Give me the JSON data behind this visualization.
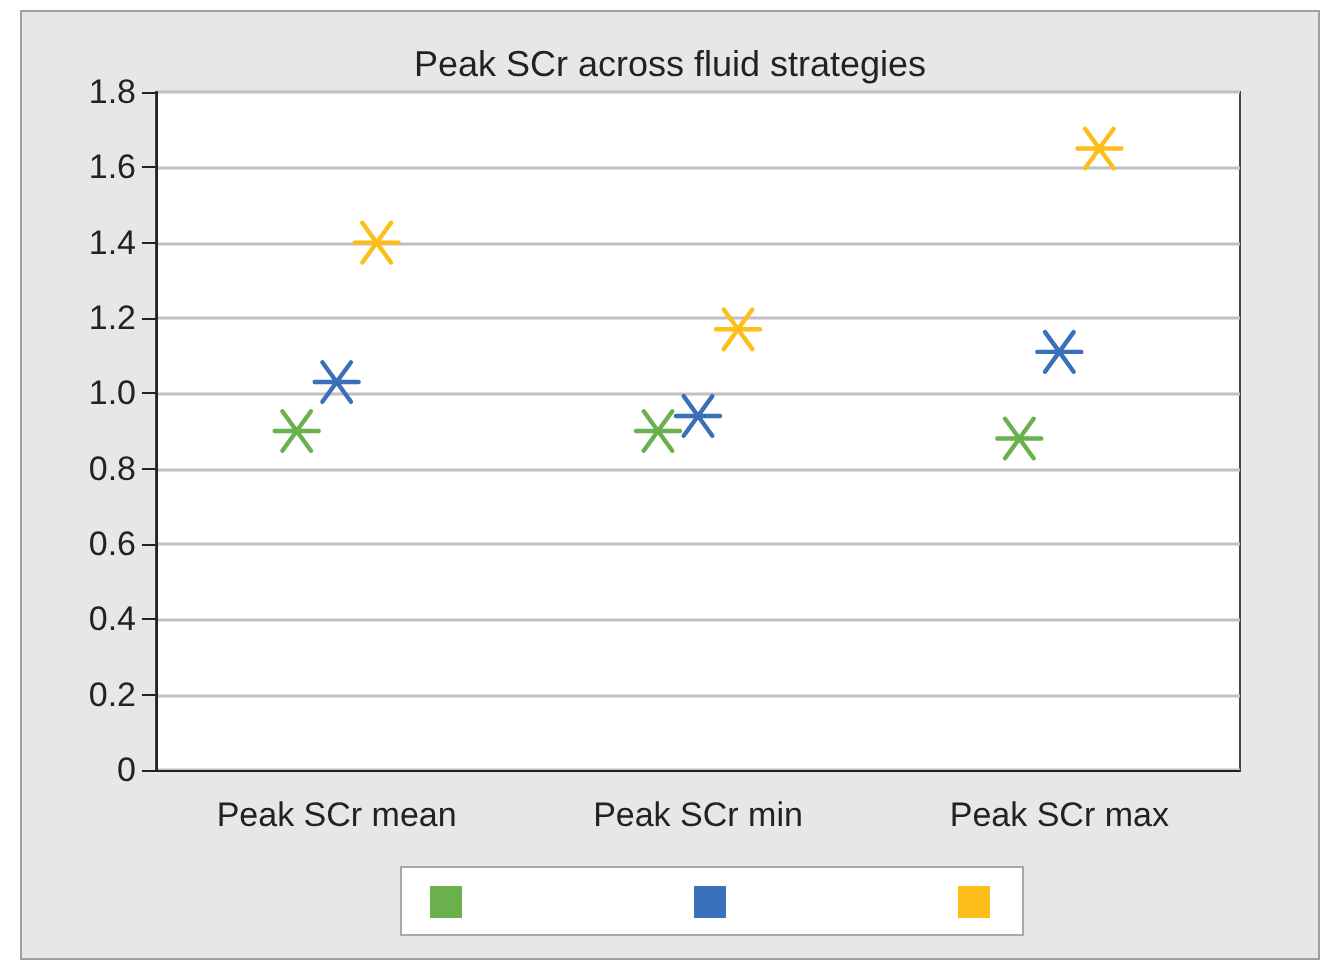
{
  "chart_data": {
    "type": "scatter",
    "title": "Peak SCr across fluid strategies",
    "categories": [
      "Peak SCr mean",
      "Peak SCr min",
      "Peak SCr max"
    ],
    "series": [
      {
        "color": "#6ab04c",
        "values": [
          0.9,
          0.9,
          0.88
        ]
      },
      {
        "color": "#3a6fb9",
        "values": [
          1.03,
          0.94,
          1.11
        ]
      },
      {
        "color": "#fdbe1a",
        "values": [
          1.4,
          1.17,
          1.65
        ]
      }
    ],
    "ylim": [
      0,
      1.8
    ],
    "yticks": [
      0,
      0.2,
      0.4,
      0.6,
      0.8,
      {
        "value": 1,
        "label": "1.0"
      },
      1.2,
      1.4,
      1.6,
      1.8
    ],
    "grid": "y",
    "marker": "cross"
  }
}
